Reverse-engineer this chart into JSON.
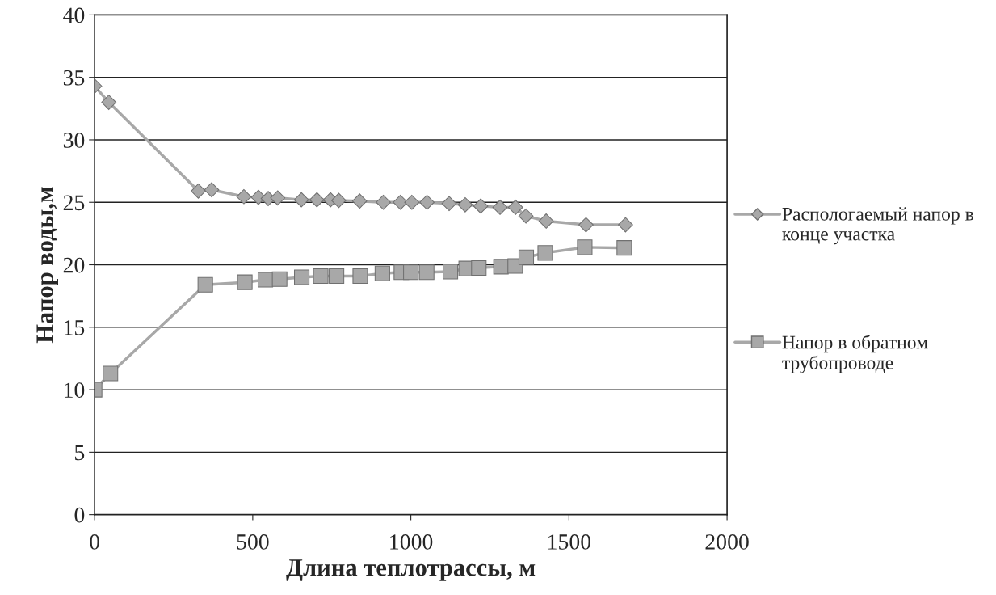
{
  "chart_data": {
    "type": "line",
    "xlabel": "Длина теплотрассы, м",
    "ylabel": "Напор воды,м",
    "xlim": [
      0,
      2000
    ],
    "xticks": [
      0,
      500,
      1000,
      1500,
      2000
    ],
    "ylim": [
      0,
      40
    ],
    "yticks": [
      0,
      5,
      10,
      15,
      20,
      25,
      30,
      35,
      40
    ],
    "grid": "y",
    "legend": "right",
    "line_style": "solid",
    "series": [
      {
        "name": "Распологаемый напор в конце участка",
        "color": "#a8a8a8",
        "marker": "diamond",
        "x": [
          0,
          45,
          328,
          370,
          472,
          518,
          549,
          579,
          654,
          703,
          746,
          772,
          838,
          913,
          967,
          1003,
          1051,
          1121,
          1172,
          1221,
          1282,
          1331,
          1364,
          1428,
          1554,
          1679
        ],
        "values": [
          34.3,
          33.0,
          25.9,
          26.0,
          25.45,
          25.4,
          25.3,
          25.35,
          25.2,
          25.2,
          25.2,
          25.15,
          25.1,
          25.0,
          25.0,
          25.0,
          25.0,
          24.9,
          24.8,
          24.7,
          24.6,
          24.6,
          23.9,
          23.5,
          23.2,
          23.2
        ]
      },
      {
        "name": "Напор в обратном трубопроводе",
        "color": "#a8a8a8",
        "marker": "square",
        "x": [
          0,
          50,
          350,
          475,
          540,
          585,
          655,
          715,
          765,
          840,
          910,
          970,
          1000,
          1050,
          1125,
          1175,
          1215,
          1285,
          1330,
          1365,
          1425,
          1550,
          1675
        ],
        "values": [
          10.0,
          11.3,
          18.4,
          18.6,
          18.8,
          18.85,
          19.0,
          19.1,
          19.1,
          19.1,
          19.3,
          19.4,
          19.4,
          19.4,
          19.45,
          19.7,
          19.75,
          19.85,
          19.9,
          20.6,
          20.95,
          21.4,
          21.35
        ]
      }
    ]
  }
}
